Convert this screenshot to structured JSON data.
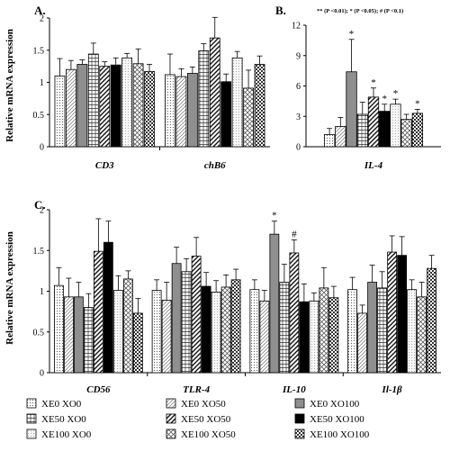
{
  "chart_data": [
    {
      "id": "panelA",
      "type": "bar",
      "panel_label": "A.",
      "ylabel": "Relative mRNA expression",
      "ylim": [
        0,
        2
      ],
      "yticks": [
        "0",
        "0.5",
        "1",
        "1.5",
        "2"
      ],
      "categories": [
        "CD3",
        "chB6"
      ],
      "values": [
        [
          1.1,
          1.2,
          1.28,
          1.44,
          1.25,
          1.27,
          1.38,
          1.29,
          1.17
        ],
        [
          1.12,
          1.09,
          1.14,
          1.49,
          1.69,
          1.01,
          1.38,
          0.91,
          1.28
        ]
      ],
      "errors": [
        [
          0.27,
          0.14,
          0.07,
          0.17,
          0.07,
          0.11,
          0.07,
          0.23,
          0.11
        ],
        [
          0.32,
          0.12,
          0.1,
          0.11,
          0.32,
          0.12,
          0.1,
          0.28,
          0.13
        ]
      ],
      "significance": [
        [
          "",
          "",
          "",
          "",
          "",
          "",
          "",
          "",
          ""
        ],
        [
          "",
          "",
          "",
          "",
          "",
          "",
          "",
          "",
          ""
        ]
      ],
      "grid": false
    },
    {
      "id": "panelB",
      "type": "bar",
      "panel_label": "B.",
      "note": "** (P <0.01); * (P <0.05); # (P <0.1)",
      "ylabel": "",
      "ylim": [
        0,
        12
      ],
      "yticks": [
        "0",
        "3",
        "6",
        "9",
        "12"
      ],
      "categories": [
        "IL-4"
      ],
      "values": [
        [
          1.2,
          2.0,
          7.4,
          3.2,
          4.9,
          3.5,
          4.2,
          2.7,
          3.3
        ]
      ],
      "errors": [
        [
          0.6,
          0.9,
          3.2,
          1.2,
          0.9,
          0.7,
          0.5,
          0.5,
          0.4
        ]
      ],
      "significance": [
        [
          "",
          "",
          "*",
          "",
          "*",
          "*",
          "*",
          "",
          "*"
        ]
      ],
      "grid": false
    },
    {
      "id": "panelC",
      "type": "bar",
      "panel_label": "C.",
      "ylabel": "Relative mRNA expression",
      "ylim": [
        0,
        2
      ],
      "yticks": [
        "0",
        "0.5",
        "1",
        "1.5",
        "2"
      ],
      "categories": [
        "CD56",
        "TLR-4",
        "IL-10",
        "Il-1β"
      ],
      "values": [
        [
          1.07,
          0.93,
          0.93,
          0.8,
          1.49,
          1.6,
          1.01,
          1.15,
          0.73
        ],
        [
          1.01,
          0.89,
          1.34,
          1.24,
          1.43,
          1.06,
          0.99,
          1.05,
          1.14
        ],
        [
          1.02,
          0.88,
          1.7,
          1.11,
          1.47,
          0.87,
          0.88,
          1.04,
          0.92
        ],
        [
          1.02,
          0.73,
          1.11,
          1.04,
          1.48,
          1.44,
          1.02,
          0.93,
          1.28
        ]
      ],
      "errors": [
        [
          0.22,
          0.23,
          0.18,
          0.17,
          0.4,
          0.26,
          0.18,
          0.1,
          0.18
        ],
        [
          0.13,
          0.22,
          0.2,
          0.16,
          0.23,
          0.17,
          0.14,
          0.15,
          0.13
        ],
        [
          0.12,
          0.13,
          0.16,
          0.22,
          0.16,
          0.22,
          0.1,
          0.25,
          0.14
        ],
        [
          0.15,
          0.1,
          0.21,
          0.2,
          0.2,
          0.23,
          0.12,
          0.18,
          0.16
        ]
      ],
      "significance": [
        [
          "",
          "",
          "",
          "",
          "",
          "",
          "",
          "",
          ""
        ],
        [
          "",
          "",
          "",
          "",
          "",
          "",
          "",
          "",
          ""
        ],
        [
          "",
          "",
          "*",
          "",
          "#",
          "",
          "",
          "",
          ""
        ],
        [
          "",
          "",
          "",
          "",
          "",
          "",
          "",
          "",
          ""
        ]
      ],
      "grid": false
    }
  ],
  "legend": {
    "position": "bottom",
    "series": [
      {
        "name": "XE0 XO0",
        "pattern": "dots"
      },
      {
        "name": "XE0 XO50",
        "pattern": "hatch-light"
      },
      {
        "name": "XE0 XO100",
        "pattern": "solid-gray"
      },
      {
        "name": "XE50 XO0",
        "pattern": "grid"
      },
      {
        "name": "XE50 XO50",
        "pattern": "hatch-bold"
      },
      {
        "name": "XE50 XO100",
        "pattern": "solid-black"
      },
      {
        "name": "XE100 XO0",
        "pattern": "light-dots"
      },
      {
        "name": "XE100 XO50",
        "pattern": "crosshatch"
      },
      {
        "name": "XE100 XO100",
        "pattern": "checker"
      }
    ]
  }
}
